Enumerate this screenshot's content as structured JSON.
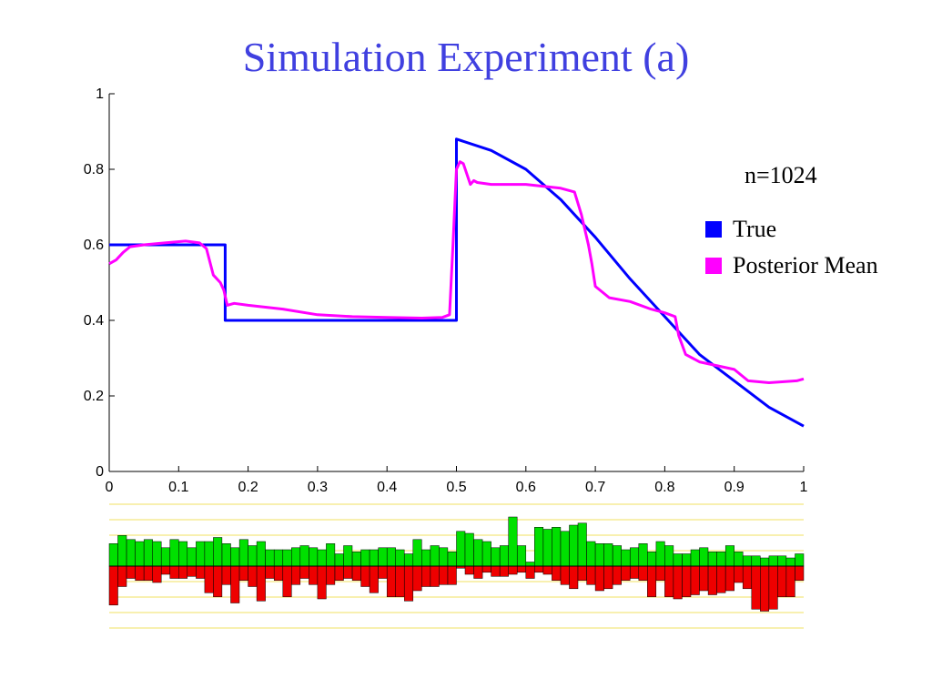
{
  "title": "Simulation Experiment (a)",
  "annotation": "n=1024",
  "colors": {
    "title": "#4040e0",
    "true": "#0000ff",
    "posterior": "#ff00ff",
    "pos_bar": "#00e000",
    "neg_bar": "#ee0000",
    "grid_lines": "#f0e060"
  },
  "chart_data": [
    {
      "type": "line",
      "title": "",
      "xlabel": "",
      "ylabel": "",
      "xlim": [
        0,
        1
      ],
      "ylim": [
        0,
        1
      ],
      "xticks": [
        "0",
        "0.1",
        "0.2",
        "0.3",
        "0.4",
        "0.5",
        "0.6",
        "0.7",
        "0.8",
        "0.9",
        "1"
      ],
      "yticks": [
        "0",
        "0.2",
        "0.4",
        "0.6",
        "0.8",
        "1"
      ],
      "legend_position": "right",
      "legend": [
        "True",
        "Posterior Mean"
      ],
      "series": [
        {
          "name": "True",
          "x": [
            0,
            0.167,
            0.167,
            0.5,
            0.5,
            0.55,
            0.6,
            0.65,
            0.7,
            0.75,
            0.8,
            0.85,
            0.9,
            0.95,
            1.0
          ],
          "y": [
            0.6,
            0.6,
            0.4,
            0.4,
            0.88,
            0.85,
            0.8,
            0.72,
            0.62,
            0.51,
            0.41,
            0.31,
            0.24,
            0.17,
            0.12
          ]
        },
        {
          "name": "Posterior Mean",
          "x": [
            0,
            0.01,
            0.02,
            0.03,
            0.05,
            0.08,
            0.11,
            0.13,
            0.14,
            0.15,
            0.16,
            0.165,
            0.17,
            0.18,
            0.2,
            0.25,
            0.3,
            0.35,
            0.4,
            0.45,
            0.48,
            0.49,
            0.495,
            0.5,
            0.505,
            0.51,
            0.52,
            0.525,
            0.53,
            0.55,
            0.6,
            0.65,
            0.67,
            0.68,
            0.69,
            0.695,
            0.7,
            0.72,
            0.75,
            0.78,
            0.8,
            0.815,
            0.82,
            0.83,
            0.85,
            0.9,
            0.92,
            0.95,
            0.99,
            1.0
          ],
          "y": [
            0.55,
            0.56,
            0.58,
            0.595,
            0.6,
            0.605,
            0.61,
            0.605,
            0.59,
            0.52,
            0.5,
            0.48,
            0.44,
            0.445,
            0.44,
            0.43,
            0.415,
            0.41,
            0.408,
            0.406,
            0.408,
            0.415,
            0.6,
            0.8,
            0.82,
            0.815,
            0.76,
            0.77,
            0.765,
            0.76,
            0.76,
            0.75,
            0.74,
            0.68,
            0.6,
            0.55,
            0.49,
            0.46,
            0.45,
            0.43,
            0.42,
            0.41,
            0.36,
            0.31,
            0.29,
            0.27,
            0.24,
            0.235,
            0.24,
            0.245
          ]
        }
      ]
    },
    {
      "type": "bar",
      "title": "",
      "grid": true,
      "series": [
        {
          "name": "",
          "values": [
            0.55,
            0.75,
            0.65,
            0.6,
            0.65,
            0.6,
            0.45,
            0.65,
            0.6,
            0.45,
            0.6,
            0.6,
            0.7,
            0.55,
            0.45,
            0.65,
            0.5,
            0.6,
            0.4,
            0.4,
            0.4,
            0.45,
            0.5,
            0.45,
            0.4,
            0.55,
            0.3,
            0.5,
            0.35,
            0.4,
            0.4,
            0.45,
            0.45,
            0.4,
            0.3,
            0.65,
            0.4,
            0.5,
            0.45,
            0.35,
            0.85,
            0.8,
            0.65,
            0.6,
            0.45,
            0.5,
            1.2,
            0.5,
            0.1,
            0.95,
            0.9,
            0.95,
            0.85,
            1.0,
            1.05,
            0.6,
            0.55,
            0.55,
            0.5,
            0.4,
            0.45,
            0.55,
            0.35,
            0.6,
            0.5,
            0.3,
            0.3,
            0.4,
            0.45,
            0.35,
            0.35,
            0.5,
            0.35,
            0.25,
            0.25,
            0.2,
            0.25,
            0.25,
            0.2,
            0.3
          ]
        },
        {
          "name": "",
          "values": [
            -0.95,
            -0.5,
            -0.3,
            -0.35,
            -0.35,
            -0.4,
            -0.2,
            -0.3,
            -0.3,
            -0.25,
            -0.3,
            -0.65,
            -0.75,
            -0.45,
            -0.9,
            -0.35,
            -0.5,
            -0.85,
            -0.3,
            -0.35,
            -0.75,
            -0.45,
            -0.3,
            -0.45,
            -0.8,
            -0.45,
            -0.35,
            -0.3,
            -0.35,
            -0.5,
            -0.65,
            -0.3,
            -0.75,
            -0.75,
            -0.85,
            -0.6,
            -0.5,
            -0.5,
            -0.45,
            -0.45,
            -0.05,
            -0.2,
            -0.3,
            -0.15,
            -0.25,
            -0.25,
            -0.2,
            -0.15,
            -0.3,
            -0.15,
            -0.2,
            -0.35,
            -0.45,
            -0.55,
            -0.35,
            -0.45,
            -0.6,
            -0.55,
            -0.45,
            -0.35,
            -0.3,
            -0.35,
            -0.75,
            -0.35,
            -0.75,
            -0.8,
            -0.75,
            -0.7,
            -0.6,
            -0.7,
            -0.65,
            -0.6,
            -0.4,
            -0.55,
            -1.05,
            -1.1,
            -1.05,
            -0.75,
            -0.75,
            -0.35
          ]
        }
      ]
    }
  ],
  "tick_labels_x": [
    "0",
    "0.1",
    "0.2",
    "0.3",
    "0.4",
    "0.5",
    "0.6",
    "0.7",
    "0.8",
    "0.9",
    "1"
  ],
  "tick_labels_y": [
    "0",
    "0.2",
    "0.4",
    "0.6",
    "0.8",
    "1"
  ],
  "legend": {
    "items": [
      {
        "label": "True",
        "color": "#0000ff"
      },
      {
        "label": "Posterior Mean",
        "color": "#ff00ff"
      }
    ]
  }
}
